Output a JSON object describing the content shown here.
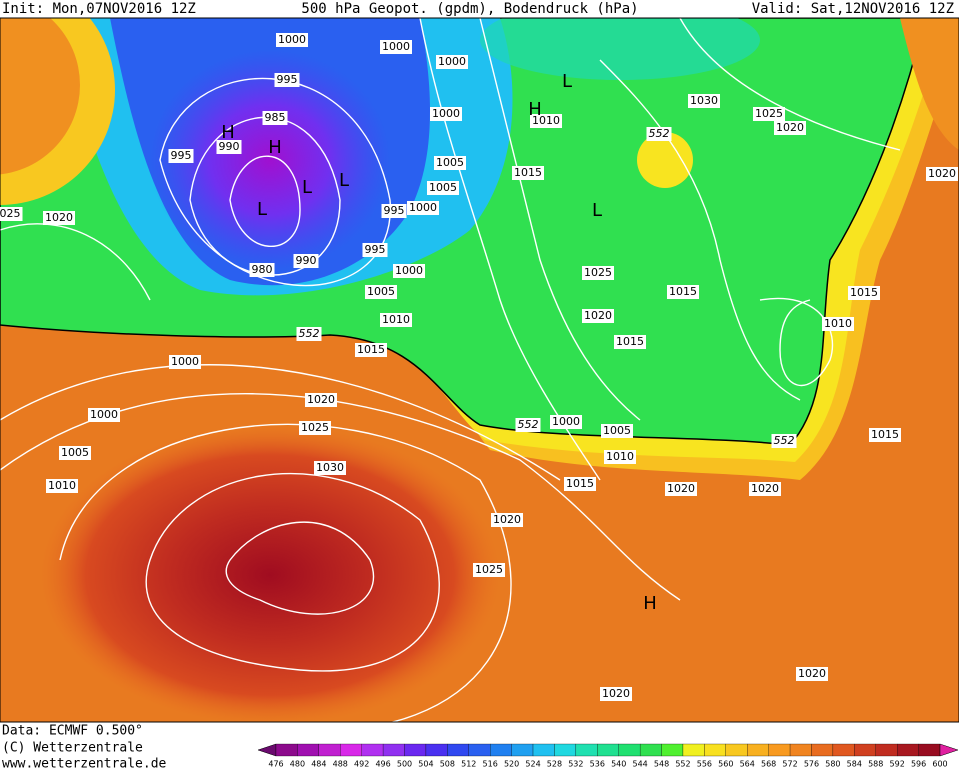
{
  "header": {
    "init": "Init: Mon,07NOV2016 12Z",
    "title": "500 hPa Geopot. (gpdm), Bodendruck (hPa)",
    "valid": "Valid: Sat,12NOV2016 12Z"
  },
  "footer": {
    "data": "Data: ECMWF  0.500°",
    "copyright": "(C) Wetterzentrale",
    "url": "www.wetterzentrale.de"
  },
  "colorbar": {
    "labels": [
      "476",
      "480",
      "484",
      "488",
      "492",
      "496",
      "500",
      "504",
      "508",
      "512",
      "516",
      "520",
      "524",
      "528",
      "532",
      "536",
      "540",
      "544",
      "548",
      "552",
      "556",
      "560",
      "564",
      "568",
      "572",
      "576",
      "580",
      "584",
      "588",
      "592",
      "596",
      "600"
    ],
    "colors": [
      "#6a0a6e",
      "#8c0a8c",
      "#a010b0",
      "#c020d0",
      "#d828e8",
      "#b030f0",
      "#9030f0",
      "#6a28f0",
      "#4a30f0",
      "#3048f0",
      "#2a60f0",
      "#2080f0",
      "#20a0f0",
      "#20c0f0",
      "#20d8e0",
      "#20e0b0",
      "#20e090",
      "#20e070",
      "#30e050",
      "#50f030",
      "#f0f020",
      "#f8e020",
      "#f8c820",
      "#f8b020",
      "#f89a20",
      "#f08420",
      "#e86c20",
      "#e05820",
      "#d04020",
      "#c02c20",
      "#a81820",
      "#980c20",
      "#e020a0"
    ]
  },
  "map": {
    "isobar_labels": [
      "1000",
      "1000",
      "1000",
      "995",
      "985",
      "990",
      "995",
      "1000",
      "1005",
      "1005",
      "1000",
      "995",
      "1020",
      "025",
      "980",
      "990",
      "995",
      "1000",
      "1005",
      "1010",
      "552",
      "1015",
      "1000",
      "1000",
      "1020",
      "1025",
      "1005",
      "1010",
      "1030",
      "552",
      "1000",
      "1005",
      "1010",
      "1015",
      "1020",
      "1025",
      "1020",
      "1020",
      "552",
      "1015",
      "1010",
      "1015",
      "1020",
      "1015",
      "1015",
      "1020",
      "1025",
      "1015",
      "1010",
      "1030",
      "1025",
      "1020",
      "552",
      "1020",
      "1020"
    ],
    "pressure_centers": [
      "H",
      "H",
      "L",
      "L",
      "L",
      "H",
      "L",
      "L",
      "H"
    ]
  }
}
